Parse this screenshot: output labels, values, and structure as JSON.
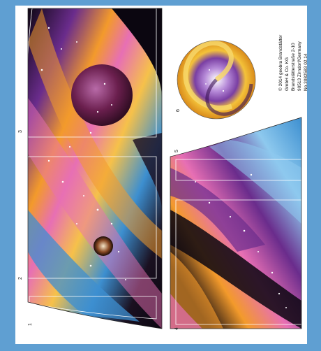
{
  "panels": [
    {
      "number": "1"
    },
    {
      "number": "2"
    },
    {
      "number": "3"
    },
    {
      "number": "4"
    },
    {
      "number": "5"
    },
    {
      "number": "6"
    }
  ],
  "credit": {
    "line1": "© 2014 geobra Brandstätter",
    "line2": "GmbH & Co. KG",
    "line3": "Brandstätterstraße   2-10",
    "line4": "90513 Zirndorf/Germany",
    "line5": "No.3082583                02.14"
  },
  "colors": {
    "frame": "#5f9fd2",
    "sheet": "#ffffff",
    "space_dark": "#0b0610",
    "nebula_orange": "#f39a2b",
    "nebula_pink": "#e76fb4",
    "nebula_purple": "#6a2c8c",
    "nebula_blue": "#3d8fd0"
  }
}
